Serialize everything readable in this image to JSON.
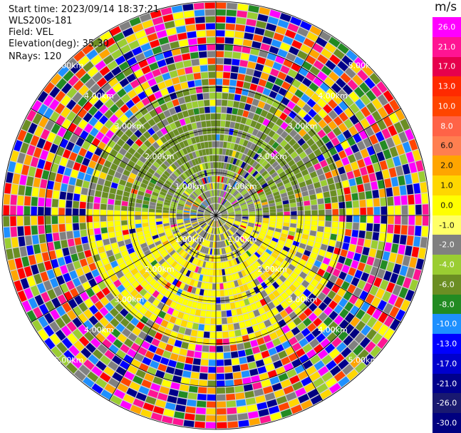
{
  "header": {
    "start_time": "Start time: 2023/09/14 18:37:21",
    "instrument": "WLS200s-181",
    "field": "Field: VEL",
    "elevation": "Elevation(deg): 35.30",
    "nrays": "NRays: 120"
  },
  "ppi": {
    "nrays": 120,
    "range_labels": [
      "1.00km",
      "2.00km",
      "3.00km",
      "4.00km",
      "5.00km"
    ]
  },
  "colorbar": {
    "unit": "m/s",
    "ticks": [
      "26.0",
      "21.0",
      "17.0",
      "13.0",
      "10.0",
      "8.0",
      "6.0",
      "2.0",
      "1.0",
      "0.0",
      "-1.0",
      "-2.0",
      "-4.0",
      "-6.0",
      "-8.0",
      "-10.0",
      "-13.0",
      "-17.0",
      "-21.0",
      "-26.0",
      "-30.0"
    ],
    "colors": [
      "#ff00ff",
      "#ff1493",
      "#e6004c",
      "#ff2a00",
      "#ff4500",
      "#ff6347",
      "#ff7f50",
      "#ffa500",
      "#ffd700",
      "#ffff00",
      "#ffff66",
      "#808080",
      "#9acd32",
      "#6b8e23",
      "#228b22",
      "#1e90ff",
      "#0000ff",
      "#0000cd",
      "#00008b",
      "#191970",
      "#000080"
    ]
  }
}
